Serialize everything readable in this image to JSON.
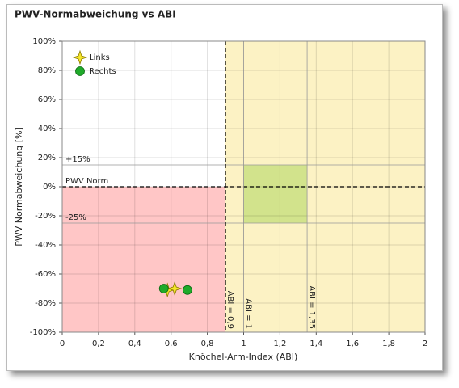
{
  "chart_data": {
    "type": "scatter",
    "title": "PWV-Normabweichung vs ABI",
    "xlabel": "Knöchel-Arm-Index (ABI)",
    "ylabel": "PWV Normabweichung [%]",
    "xlim": [
      0,
      2
    ],
    "ylim": [
      -100,
      100
    ],
    "xticks": [
      0,
      {
        "value": 0.2,
        "label": "0,2"
      },
      {
        "value": 0.4,
        "label": "0,4"
      },
      {
        "value": 0.6,
        "label": "0,6"
      },
      {
        "value": 0.8,
        "label": "0,8"
      },
      1,
      {
        "value": 1.2,
        "label": "1,2"
      },
      {
        "value": 1.4,
        "label": "1,4"
      },
      {
        "value": 1.6,
        "label": "1,6"
      },
      {
        "value": 1.8,
        "label": "1,8"
      },
      2
    ],
    "yticks": [
      {
        "value": -100,
        "label": "-100%"
      },
      {
        "value": -80,
        "label": "-80%"
      },
      {
        "value": -60,
        "label": "-60%"
      },
      {
        "value": -40,
        "label": "-40%"
      },
      {
        "value": -20,
        "label": "-20%"
      },
      {
        "value": 0,
        "label": "0%"
      },
      {
        "value": 20,
        "label": "20%"
      },
      {
        "value": 40,
        "label": "40%"
      },
      {
        "value": 60,
        "label": "60%"
      },
      {
        "value": 80,
        "label": "80%"
      },
      {
        "value": 100,
        "label": "100%"
      }
    ],
    "grid": true,
    "legend": "upper left",
    "regions": [
      {
        "x": [
          0,
          0.9
        ],
        "y": [
          -100,
          0
        ],
        "color": "#ffc6c6"
      },
      {
        "x": [
          0.9,
          2
        ],
        "y": [
          -100,
          100
        ],
        "color": "#fcf2c4"
      },
      {
        "x": [
          1,
          1.35
        ],
        "y": [
          -25,
          15
        ],
        "color": "#d2e38c"
      }
    ],
    "reference_lines": [
      {
        "axis": "y",
        "value": 15,
        "label": "+15%",
        "dashed": false
      },
      {
        "axis": "y",
        "value": 0,
        "label": "PWV Norm",
        "dashed": true
      },
      {
        "axis": "y",
        "value": -25,
        "label": "-25%",
        "dashed": false
      },
      {
        "axis": "x",
        "value": 0.9,
        "label": "ABI = 0,9",
        "dashed": true
      },
      {
        "axis": "x",
        "value": 1,
        "label": "ABI = 1",
        "dashed": false
      },
      {
        "axis": "x",
        "value": 1.35,
        "label": "ABI = 1,35",
        "dashed": false
      }
    ],
    "series": [
      {
        "name": "Links",
        "color": "#f5e62a",
        "marker": "star",
        "x": [
          0.58,
          0.62
        ],
        "values": [
          -71,
          -70
        ]
      },
      {
        "name": "Rechts",
        "color": "#1faa2a",
        "marker": "circle",
        "x": [
          0.56,
          0.69
        ],
        "values": [
          -70,
          -71
        ]
      }
    ]
  }
}
